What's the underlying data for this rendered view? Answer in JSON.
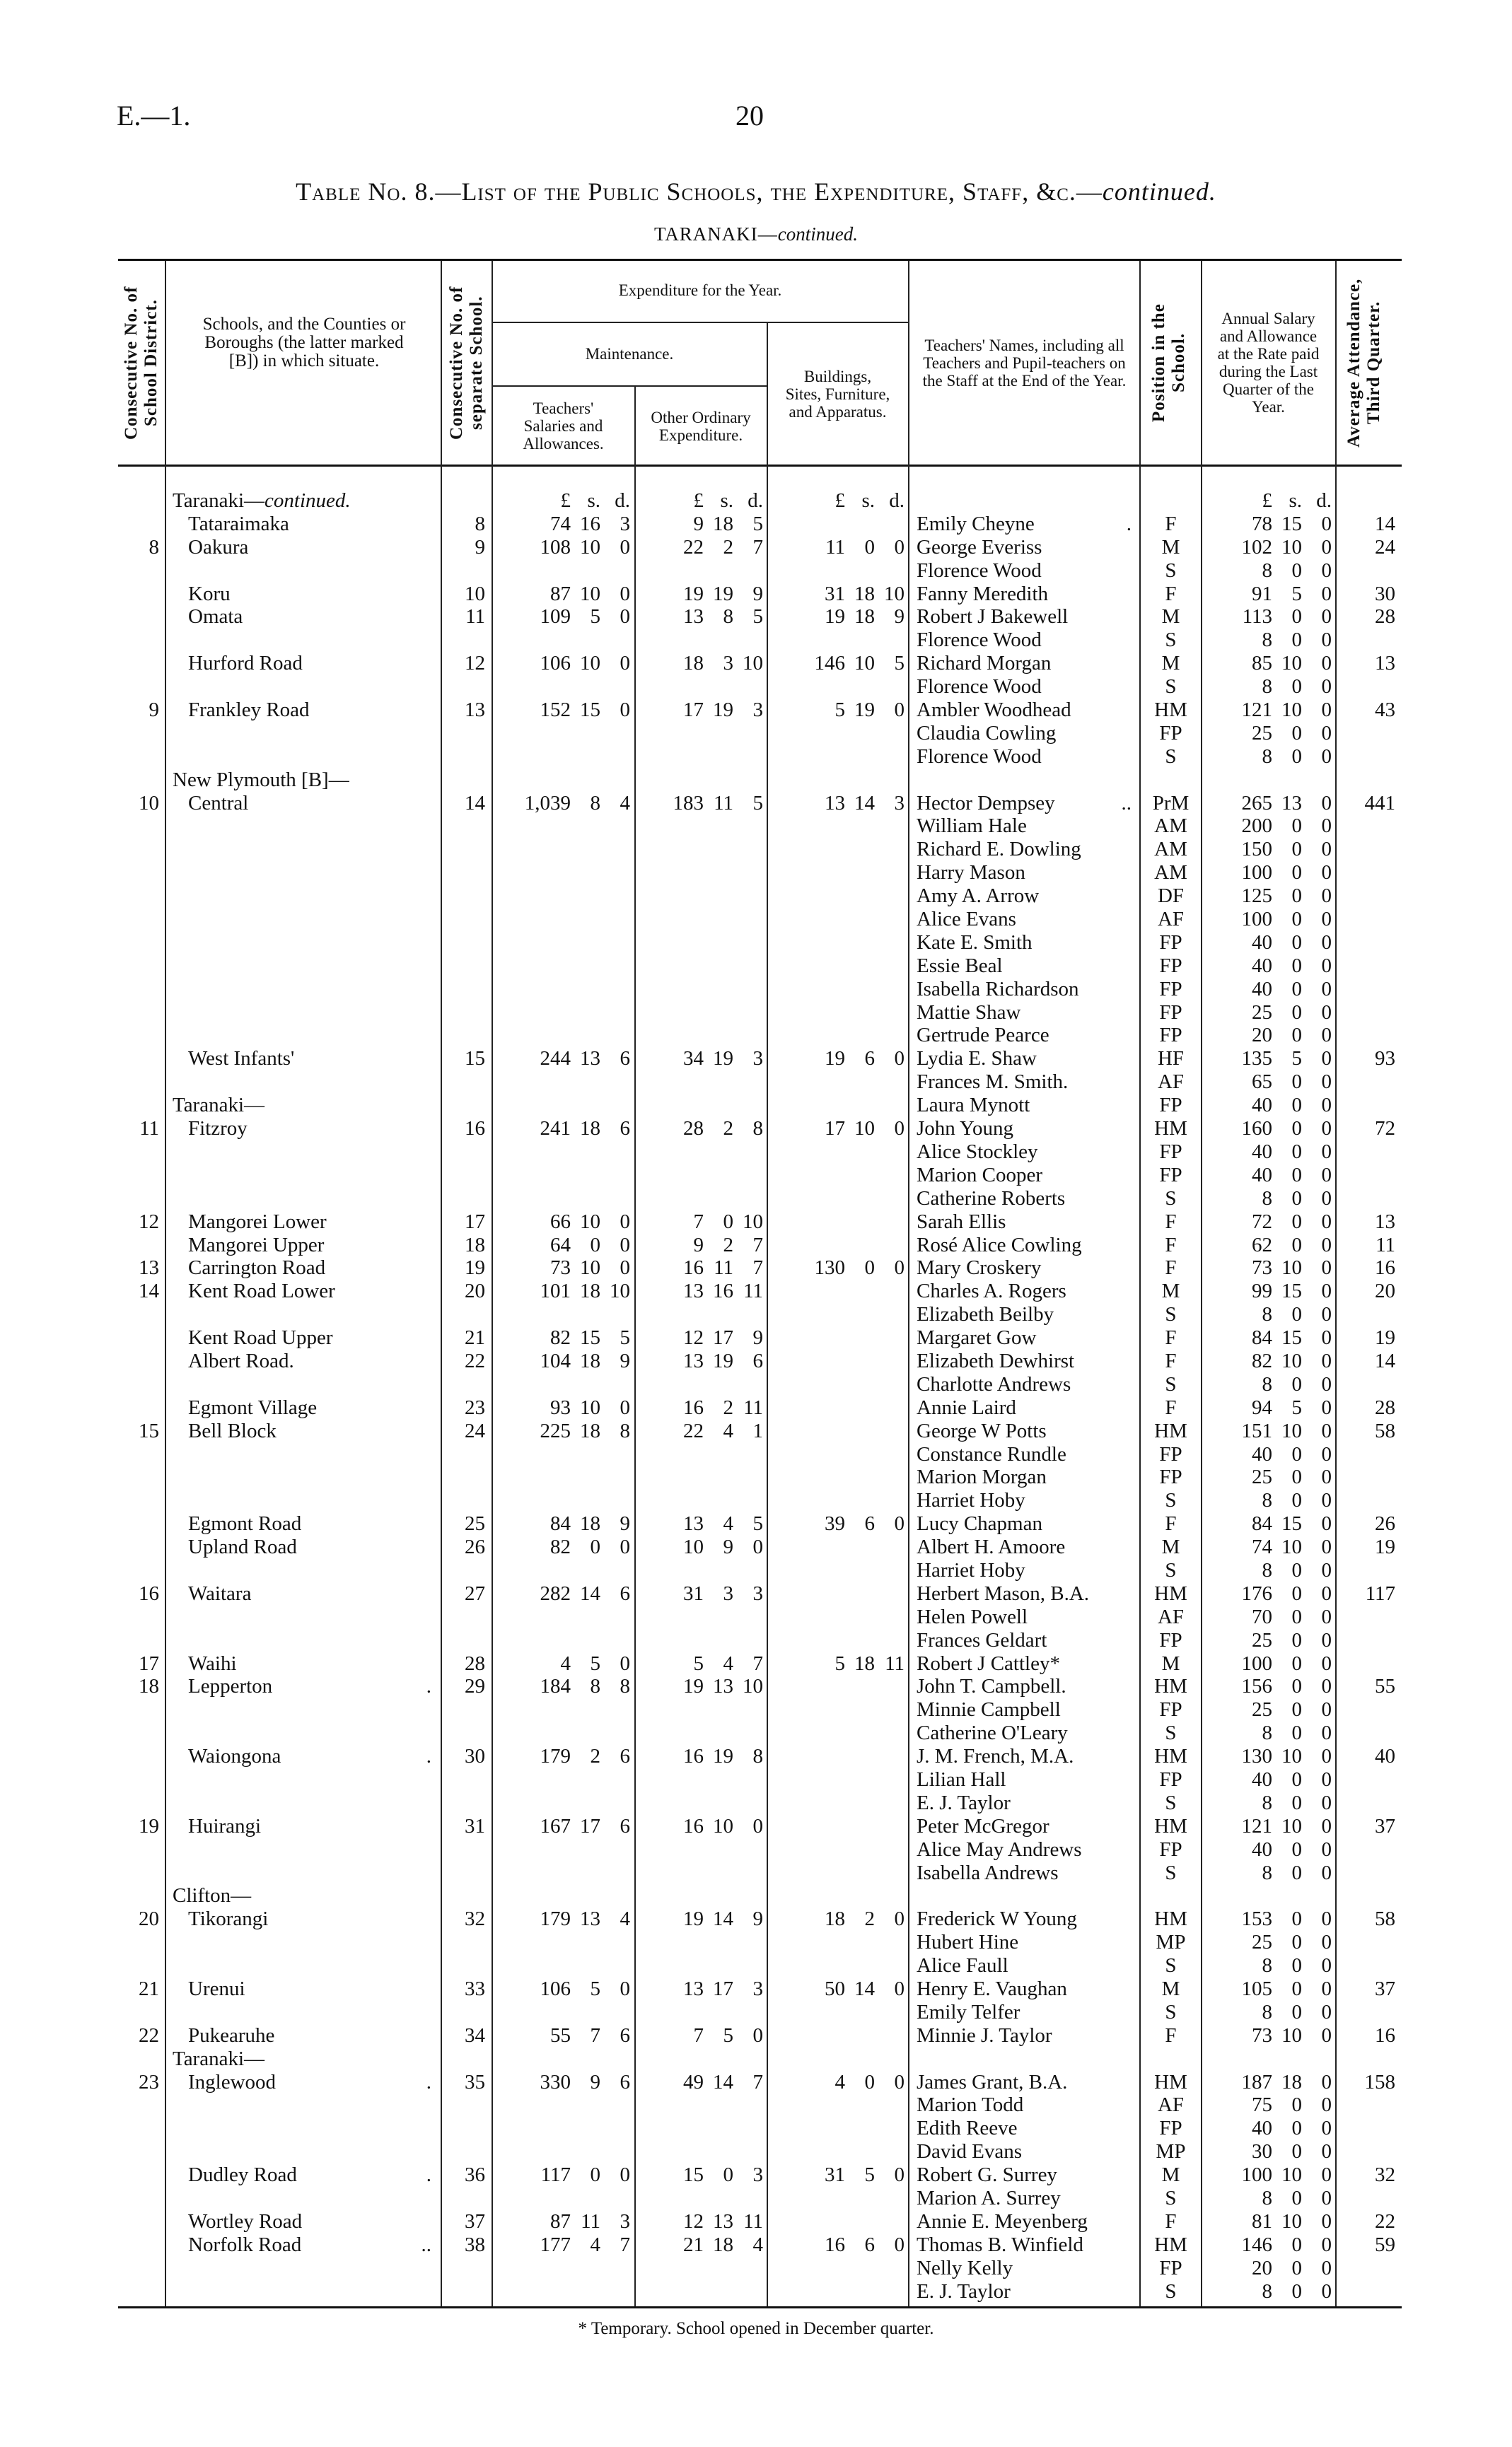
{
  "page": {
    "id": "E.—1.",
    "number": "20"
  },
  "title": {
    "main": "Table No. 8.—List of the Public Schools, the Expenditure, Staff, &c.—",
    "italic": "continued."
  },
  "subtitle": {
    "main": "TARANAKI—",
    "italic": "continued."
  },
  "headers": {
    "district_no": "Consecutive No. of School District.",
    "school": "Schools, and the Counties or Boroughs (the latter marked [B]) in which situate.",
    "school_no": "Consecutive No. of separate School.",
    "expenditure": "Expenditure for the Year.",
    "maintenance": "Maintenance.",
    "salaries": "Teachers' Salaries and Allowances.",
    "other": "Other Ordinary Expenditure.",
    "buildings": "Buildings, Sites, Furniture, and Apparatus.",
    "teachers": "Teachers' Names, including all Teachers and Pupil-teachers on the Staff at the End of the Year.",
    "position": "Position in the School.",
    "salary": "Annual Salary and Allowance at the Rate paid during the Last Quarter of the Year.",
    "attendance": "Average Attendance, Third Quarter.",
    "units": [
      "£",
      "s.",
      "d."
    ]
  },
  "lines": [
    {
      "group": "Taranaki—",
      "group_italic": "continued.",
      "units": true
    },
    {
      "school": "Tataraimaka",
      "no": "8",
      "salaries": [
        "74",
        "16",
        "3"
      ],
      "other": [
        "9",
        "18",
        "5"
      ],
      "teacher": "Emily Cheyne",
      "tdots": ".",
      "position": "F",
      "salary": [
        "78",
        "15",
        "0"
      ],
      "attendance": "14"
    },
    {
      "dist": "8",
      "school": "Oakura",
      "no": "9",
      "salaries": [
        "108",
        "10",
        "0"
      ],
      "other": [
        "22",
        "2",
        "7"
      ],
      "buildings": [
        "11",
        "0",
        "0"
      ],
      "teacher": "George Everiss",
      "position": "M",
      "salary": [
        "102",
        "10",
        "0"
      ],
      "attendance": "24"
    },
    {
      "teacher": "Florence Wood",
      "position": "S",
      "salary": [
        "8",
        "0",
        "0"
      ]
    },
    {
      "school": "Koru",
      "no": "10",
      "salaries": [
        "87",
        "10",
        "0"
      ],
      "other": [
        "19",
        "19",
        "9"
      ],
      "buildings": [
        "31",
        "18",
        "10"
      ],
      "teacher": "Fanny Meredith",
      "position": "F",
      "salary": [
        "91",
        "5",
        "0"
      ],
      "attendance": "30"
    },
    {
      "school": "Omata",
      "no": "11",
      "salaries": [
        "109",
        "5",
        "0"
      ],
      "other": [
        "13",
        "8",
        "5"
      ],
      "buildings": [
        "19",
        "18",
        "9"
      ],
      "teacher": "Robert J Bakewell",
      "position": "M",
      "salary": [
        "113",
        "0",
        "0"
      ],
      "attendance": "28"
    },
    {
      "teacher": "Florence Wood",
      "position": "S",
      "salary": [
        "8",
        "0",
        "0"
      ]
    },
    {
      "school": "Hurford Road",
      "no": "12",
      "salaries": [
        "106",
        "10",
        "0"
      ],
      "other": [
        "18",
        "3",
        "10"
      ],
      "buildings": [
        "146",
        "10",
        "5"
      ],
      "teacher": "Richard Morgan",
      "position": "M",
      "salary": [
        "85",
        "10",
        "0"
      ],
      "attendance": "13"
    },
    {
      "teacher": "Florence Wood",
      "position": "S",
      "salary": [
        "8",
        "0",
        "0"
      ]
    },
    {
      "dist": "9",
      "school": "Frankley Road",
      "no": "13",
      "salaries": [
        "152",
        "15",
        "0"
      ],
      "other": [
        "17",
        "19",
        "3"
      ],
      "buildings": [
        "5",
        "19",
        "0"
      ],
      "teacher": "Ambler Woodhead",
      "position": "HM",
      "salary": [
        "121",
        "10",
        "0"
      ],
      "attendance": "43"
    },
    {
      "teacher": "Claudia Cowling",
      "position": "FP",
      "salary": [
        "25",
        "0",
        "0"
      ]
    },
    {
      "teacher": "Florence Wood",
      "position": "S",
      "salary": [
        "8",
        "0",
        "0"
      ]
    },
    {
      "group": "New Plymouth [B]—"
    },
    {
      "dist": "10",
      "school": "Central",
      "no": "14",
      "salaries": [
        "1,039",
        "8",
        "4"
      ],
      "other": [
        "183",
        "11",
        "5"
      ],
      "buildings": [
        "13",
        "14",
        "3"
      ],
      "teacher": "Hector Dempsey",
      "tdots": "..",
      "position": "PrM",
      "salary": [
        "265",
        "13",
        "0"
      ],
      "attendance": "441"
    },
    {
      "teacher": "William Hale",
      "position": "AM",
      "salary": [
        "200",
        "0",
        "0"
      ]
    },
    {
      "teacher": "Richard E. Dowling",
      "position": "AM",
      "salary": [
        "150",
        "0",
        "0"
      ]
    },
    {
      "teacher": "Harry Mason",
      "position": "AM",
      "salary": [
        "100",
        "0",
        "0"
      ]
    },
    {
      "teacher": "Amy A. Arrow",
      "position": "DF",
      "salary": [
        "125",
        "0",
        "0"
      ]
    },
    {
      "teacher": "Alice Evans",
      "position": "AF",
      "salary": [
        "100",
        "0",
        "0"
      ]
    },
    {
      "teacher": "Kate E. Smith",
      "position": "FP",
      "salary": [
        "40",
        "0",
        "0"
      ]
    },
    {
      "teacher": "Essie Beal",
      "position": "FP",
      "salary": [
        "40",
        "0",
        "0"
      ]
    },
    {
      "teacher": "Isabella Richardson",
      "position": "FP",
      "salary": [
        "40",
        "0",
        "0"
      ]
    },
    {
      "teacher": "Mattie Shaw",
      "position": "FP",
      "salary": [
        "25",
        "0",
        "0"
      ]
    },
    {
      "teacher": "Gertrude Pearce",
      "position": "FP",
      "salary": [
        "20",
        "0",
        "0"
      ]
    },
    {
      "school": "West Infants'",
      "no": "15",
      "salaries": [
        "244",
        "13",
        "6"
      ],
      "other": [
        "34",
        "19",
        "3"
      ],
      "buildings": [
        "19",
        "6",
        "0"
      ],
      "teacher": "Lydia E. Shaw",
      "position": "HF",
      "salary": [
        "135",
        "5",
        "0"
      ],
      "attendance": "93"
    },
    {
      "teacher": "Frances M. Smith.",
      "position": "AF",
      "salary": [
        "65",
        "0",
        "0"
      ]
    },
    {
      "group": "Taranaki—",
      "teacher": "Laura Mynott",
      "position": "FP",
      "salary": [
        "40",
        "0",
        "0"
      ]
    },
    {
      "dist": "11",
      "school": "Fitzroy",
      "no": "16",
      "salaries": [
        "241",
        "18",
        "6"
      ],
      "other": [
        "28",
        "2",
        "8"
      ],
      "buildings": [
        "17",
        "10",
        "0"
      ],
      "teacher": "John Young",
      "position": "HM",
      "salary": [
        "160",
        "0",
        "0"
      ],
      "attendance": "72"
    },
    {
      "teacher": "Alice Stockley",
      "position": "FP",
      "salary": [
        "40",
        "0",
        "0"
      ]
    },
    {
      "teacher": "Marion Cooper",
      "position": "FP",
      "salary": [
        "40",
        "0",
        "0"
      ]
    },
    {
      "teacher": "Catherine Roberts",
      "position": "S",
      "salary": [
        "8",
        "0",
        "0"
      ]
    },
    {
      "dist": "12",
      "school": "Mangorei Lower",
      "no": "17",
      "salaries": [
        "66",
        "10",
        "0"
      ],
      "other": [
        "7",
        "0",
        "10"
      ],
      "teacher": "Sarah Ellis",
      "position": "F",
      "salary": [
        "72",
        "0",
        "0"
      ],
      "attendance": "13"
    },
    {
      "school": "Mangorei Upper",
      "no": "18",
      "salaries": [
        "64",
        "0",
        "0"
      ],
      "other": [
        "9",
        "2",
        "7"
      ],
      "teacher": "Rosé Alice Cowling",
      "position": "F",
      "salary": [
        "62",
        "0",
        "0"
      ],
      "attendance": "11"
    },
    {
      "dist": "13",
      "school": "Carrington Road",
      "no": "19",
      "salaries": [
        "73",
        "10",
        "0"
      ],
      "other": [
        "16",
        "11",
        "7"
      ],
      "buildings": [
        "130",
        "0",
        "0"
      ],
      "teacher": "Mary Croskery",
      "position": "F",
      "salary": [
        "73",
        "10",
        "0"
      ],
      "attendance": "16"
    },
    {
      "dist": "14",
      "school": "Kent Road Lower",
      "no": "20",
      "salaries": [
        "101",
        "18",
        "10"
      ],
      "other": [
        "13",
        "16",
        "11"
      ],
      "teacher": "Charles A. Rogers",
      "position": "M",
      "salary": [
        "99",
        "15",
        "0"
      ],
      "attendance": "20"
    },
    {
      "teacher": "Elizabeth Beilby",
      "position": "S",
      "salary": [
        "8",
        "0",
        "0"
      ]
    },
    {
      "school": "Kent Road Upper",
      "no": "21",
      "salaries": [
        "82",
        "15",
        "5"
      ],
      "other": [
        "12",
        "17",
        "9"
      ],
      "teacher": "Margaret Gow",
      "position": "F",
      "salary": [
        "84",
        "15",
        "0"
      ],
      "attendance": "19"
    },
    {
      "school": "Albert Road.",
      "no": "22",
      "salaries": [
        "104",
        "18",
        "9"
      ],
      "other": [
        "13",
        "19",
        "6"
      ],
      "teacher": "Elizabeth Dewhirst",
      "position": "F",
      "salary": [
        "82",
        "10",
        "0"
      ],
      "attendance": "14"
    },
    {
      "teacher": "Charlotte Andrews",
      "position": "S",
      "salary": [
        "8",
        "0",
        "0"
      ]
    },
    {
      "school": "Egmont Village",
      "no": "23",
      "salaries": [
        "93",
        "10",
        "0"
      ],
      "other": [
        "16",
        "2",
        "11"
      ],
      "teacher": "Annie Laird",
      "position": "F",
      "salary": [
        "94",
        "5",
        "0"
      ],
      "attendance": "28"
    },
    {
      "dist": "15",
      "school": "Bell Block",
      "no": "24",
      "salaries": [
        "225",
        "18",
        "8"
      ],
      "other": [
        "22",
        "4",
        "1"
      ],
      "teacher": "George W Potts",
      "position": "HM",
      "salary": [
        "151",
        "10",
        "0"
      ],
      "attendance": "58"
    },
    {
      "teacher": "Constance Rundle",
      "position": "FP",
      "salary": [
        "40",
        "0",
        "0"
      ]
    },
    {
      "teacher": "Marion Morgan",
      "position": "FP",
      "salary": [
        "25",
        "0",
        "0"
      ]
    },
    {
      "teacher": "Harriet Hoby",
      "position": "S",
      "salary": [
        "8",
        "0",
        "0"
      ]
    },
    {
      "school": "Egmont Road",
      "no": "25",
      "salaries": [
        "84",
        "18",
        "9"
      ],
      "other": [
        "13",
        "4",
        "5"
      ],
      "buildings": [
        "39",
        "6",
        "0"
      ],
      "teacher": "Lucy Chapman",
      "position": "F",
      "salary": [
        "84",
        "15",
        "0"
      ],
      "attendance": "26"
    },
    {
      "school": "Upland Road",
      "no": "26",
      "salaries": [
        "82",
        "0",
        "0"
      ],
      "other": [
        "10",
        "9",
        "0"
      ],
      "teacher": "Albert H. Amoore",
      "position": "M",
      "salary": [
        "74",
        "10",
        "0"
      ],
      "attendance": "19"
    },
    {
      "teacher": "Harriet Hoby",
      "position": "S",
      "salary": [
        "8",
        "0",
        "0"
      ]
    },
    {
      "dist": "16",
      "school": "Waitara",
      "no": "27",
      "salaries": [
        "282",
        "14",
        "6"
      ],
      "other": [
        "31",
        "3",
        "3"
      ],
      "teacher": "Herbert Mason, B.A.",
      "position": "HM",
      "salary": [
        "176",
        "0",
        "0"
      ],
      "attendance": "117"
    },
    {
      "teacher": "Helen Powell",
      "position": "AF",
      "salary": [
        "70",
        "0",
        "0"
      ]
    },
    {
      "teacher": "Frances Geldart",
      "position": "FP",
      "salary": [
        "25",
        "0",
        "0"
      ]
    },
    {
      "dist": "17",
      "school": "Waihi",
      "no": "28",
      "salaries": [
        "4",
        "5",
        "0"
      ],
      "other": [
        "5",
        "4",
        "7"
      ],
      "buildings": [
        "5",
        "18",
        "11"
      ],
      "teacher": "Robert J Cattley*",
      "position": "M",
      "salary": [
        "100",
        "0",
        "0"
      ]
    },
    {
      "dist": "18",
      "school": "Lepperton",
      "sdots": ".",
      "no": "29",
      "salaries": [
        "184",
        "8",
        "8"
      ],
      "other": [
        "19",
        "13",
        "10"
      ],
      "teacher": "John T. Campbell.",
      "position": "HM",
      "salary": [
        "156",
        "0",
        "0"
      ],
      "attendance": "55"
    },
    {
      "teacher": "Minnie Campbell",
      "position": "FP",
      "salary": [
        "25",
        "0",
        "0"
      ]
    },
    {
      "teacher": "Catherine O'Leary",
      "position": "S",
      "salary": [
        "8",
        "0",
        "0"
      ]
    },
    {
      "school": "Waiongona",
      "sdots": ".",
      "no": "30",
      "salaries": [
        "179",
        "2",
        "6"
      ],
      "other": [
        "16",
        "19",
        "8"
      ],
      "teacher": "J. M. French, M.A.",
      "position": "HM",
      "salary": [
        "130",
        "10",
        "0"
      ],
      "attendance": "40"
    },
    {
      "teacher": "Lilian Hall",
      "position": "FP",
      "salary": [
        "40",
        "0",
        "0"
      ]
    },
    {
      "teacher": "E. J. Taylor",
      "position": "S",
      "salary": [
        "8",
        "0",
        "0"
      ]
    },
    {
      "dist": "19",
      "school": "Huirangi",
      "no": "31",
      "salaries": [
        "167",
        "17",
        "6"
      ],
      "other": [
        "16",
        "10",
        "0"
      ],
      "teacher": "Peter McGregor",
      "position": "HM",
      "salary": [
        "121",
        "10",
        "0"
      ],
      "attendance": "37"
    },
    {
      "teacher": "Alice May Andrews",
      "position": "FP",
      "salary": [
        "40",
        "0",
        "0"
      ]
    },
    {
      "teacher": "Isabella Andrews",
      "position": "S",
      "salary": [
        "8",
        "0",
        "0"
      ]
    },
    {
      "group": "Clifton—"
    },
    {
      "dist": "20",
      "school": "Tikorangi",
      "no": "32",
      "salaries": [
        "179",
        "13",
        "4"
      ],
      "other": [
        "19",
        "14",
        "9"
      ],
      "buildings": [
        "18",
        "2",
        "0"
      ],
      "teacher": "Frederick W Young",
      "position": "HM",
      "salary": [
        "153",
        "0",
        "0"
      ],
      "attendance": "58"
    },
    {
      "teacher": "Hubert Hine",
      "position": "MP",
      "salary": [
        "25",
        "0",
        "0"
      ]
    },
    {
      "teacher": "Alice Faull",
      "position": "S",
      "salary": [
        "8",
        "0",
        "0"
      ]
    },
    {
      "dist": "21",
      "school": "Urenui",
      "no": "33",
      "salaries": [
        "106",
        "5",
        "0"
      ],
      "other": [
        "13",
        "17",
        "3"
      ],
      "buildings": [
        "50",
        "14",
        "0"
      ],
      "teacher": "Henry E. Vaughan",
      "position": "M",
      "salary": [
        "105",
        "0",
        "0"
      ],
      "attendance": "37"
    },
    {
      "teacher": "Emily Telfer",
      "position": "S",
      "salary": [
        "8",
        "0",
        "0"
      ]
    },
    {
      "dist": "22",
      "school": "Pukearuhe",
      "no": "34",
      "salaries": [
        "55",
        "7",
        "6"
      ],
      "other": [
        "7",
        "5",
        "0"
      ],
      "teacher": "Minnie J. Taylor",
      "position": "F",
      "salary": [
        "73",
        "10",
        "0"
      ],
      "attendance": "16"
    },
    {
      "group": "Taranaki—"
    },
    {
      "dist": "23",
      "school": "Inglewood",
      "sdots": ".",
      "no": "35",
      "salaries": [
        "330",
        "9",
        "6"
      ],
      "other": [
        "49",
        "14",
        "7"
      ],
      "buildings": [
        "4",
        "0",
        "0"
      ],
      "teacher": "James Grant, B.A.",
      "position": "HM",
      "salary": [
        "187",
        "18",
        "0"
      ],
      "attendance": "158"
    },
    {
      "teacher": "Marion Todd",
      "position": "AF",
      "salary": [
        "75",
        "0",
        "0"
      ]
    },
    {
      "teacher": "Edith Reeve",
      "position": "FP",
      "salary": [
        "40",
        "0",
        "0"
      ]
    },
    {
      "teacher": "David Evans",
      "position": "MP",
      "salary": [
        "30",
        "0",
        "0"
      ]
    },
    {
      "school": "Dudley Road",
      "sdots": ".",
      "no": "36",
      "salaries": [
        "117",
        "0",
        "0"
      ],
      "other": [
        "15",
        "0",
        "3"
      ],
      "buildings": [
        "31",
        "5",
        "0"
      ],
      "teacher": "Robert G. Surrey",
      "position": "M",
      "salary": [
        "100",
        "10",
        "0"
      ],
      "attendance": "32"
    },
    {
      "teacher": "Marion A. Surrey",
      "position": "S",
      "salary": [
        "8",
        "0",
        "0"
      ]
    },
    {
      "school": "Wortley Road",
      "no": "37",
      "salaries": [
        "87",
        "11",
        "3"
      ],
      "other": [
        "12",
        "13",
        "11"
      ],
      "teacher": "Annie E. Meyenberg",
      "position": "F",
      "salary": [
        "81",
        "10",
        "0"
      ],
      "attendance": "22"
    },
    {
      "school": "Norfolk Road",
      "sdots": "..",
      "no": "38",
      "salaries": [
        "177",
        "4",
        "7"
      ],
      "other": [
        "21",
        "18",
        "4"
      ],
      "buildings": [
        "16",
        "6",
        "0"
      ],
      "teacher": "Thomas B. Winfield",
      "position": "HM",
      "salary": [
        "146",
        "0",
        "0"
      ],
      "attendance": "59"
    },
    {
      "teacher": "Nelly Kelly",
      "position": "FP",
      "salary": [
        "20",
        "0",
        "0"
      ]
    },
    {
      "teacher": "E. J. Taylor",
      "position": "S",
      "salary": [
        "8",
        "0",
        "0"
      ]
    }
  ],
  "footnote": "* Temporary.   School opened in December quarter."
}
